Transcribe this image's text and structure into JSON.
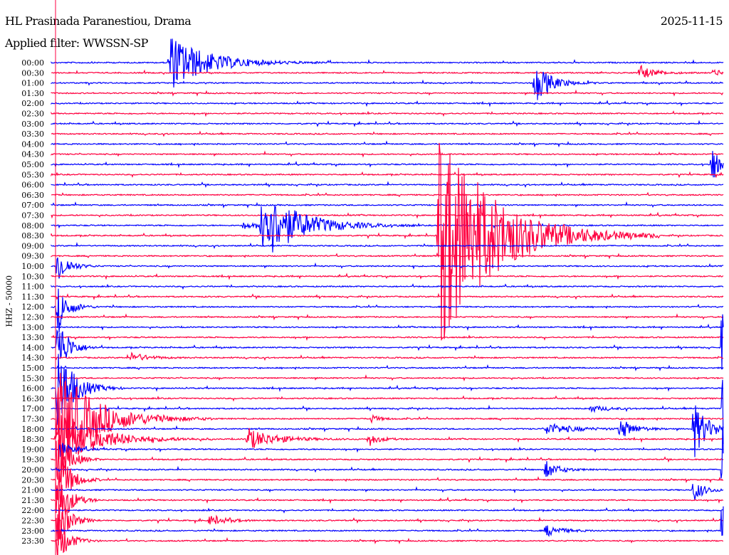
{
  "header": {
    "station": "HL Prasinada Paranestiou, Drama",
    "filter": "Applied filter: WWSSN-SP",
    "date": "2025-11-15",
    "channel": "HHZ - 50000"
  },
  "chart_data": {
    "type": "helicorder",
    "minutes_per_line": 30,
    "row_labels": [
      "00:00",
      "00:30",
      "01:00",
      "01:30",
      "02:00",
      "02:30",
      "03:00",
      "03:30",
      "04:00",
      "04:30",
      "05:00",
      "05:30",
      "06:00",
      "06:30",
      "07:00",
      "07:30",
      "08:00",
      "08:30",
      "09:00",
      "09:30",
      "10:00",
      "10:30",
      "11:00",
      "11:30",
      "12:00",
      "12:30",
      "13:00",
      "13:30",
      "14:00",
      "14:30",
      "15:00",
      "15:30",
      "16:00",
      "16:30",
      "17:00",
      "17:30",
      "18:00",
      "18:30",
      "19:00",
      "19:30",
      "20:00",
      "20:30",
      "21:00",
      "21:30",
      "22:00",
      "22:30",
      "23:00",
      "23:30"
    ],
    "colors": [
      "#0000ff",
      "#ff0040"
    ],
    "marker_color": "#ff0040",
    "events": [
      {
        "row": 0,
        "minute": 5.2,
        "amp": 42,
        "duration": 3.5
      },
      {
        "row": 1,
        "minute": 26.2,
        "amp": 10,
        "duration": 1.5
      },
      {
        "row": 1,
        "minute": 29.5,
        "amp": 10,
        "duration": 0.5
      },
      {
        "row": 2,
        "minute": 21.5,
        "amp": 32,
        "duration": 1.5
      },
      {
        "row": 10,
        "minute": 29.4,
        "amp": 45,
        "duration": 0.6
      },
      {
        "row": 16,
        "minute": 9.3,
        "amp": 55,
        "duration": 3.5
      },
      {
        "row": 16,
        "minute": 8.5,
        "amp": 6,
        "duration": 1.0
      },
      {
        "row": 17,
        "minute": 17.2,
        "amp": 170,
        "duration": 5.0
      },
      {
        "row": 29,
        "minute": 3.5,
        "amp": 8,
        "duration": 1.5
      },
      {
        "row": 34,
        "minute": 24.0,
        "amp": 5,
        "duration": 1.5
      },
      {
        "row": 35,
        "minute": 14.2,
        "amp": 7,
        "duration": 0.8
      },
      {
        "row": 36,
        "minute": 22.0,
        "amp": 9,
        "duration": 2.5
      },
      {
        "row": 36,
        "minute": 25.3,
        "amp": 18,
        "duration": 1.2
      },
      {
        "row": 36,
        "minute": 28.6,
        "amp": 45,
        "duration": 1.3
      },
      {
        "row": 37,
        "minute": 8.7,
        "amp": 16,
        "duration": 2.5
      },
      {
        "row": 37,
        "minute": 14.1,
        "amp": 10,
        "duration": 1.0
      },
      {
        "row": 38,
        "minute": 0.3,
        "amp": 12,
        "duration": 1.3
      },
      {
        "row": 40,
        "minute": 22.0,
        "amp": 14,
        "duration": 1.2
      },
      {
        "row": 42,
        "minute": 28.6,
        "amp": 18,
        "duration": 1.0
      },
      {
        "row": 45,
        "minute": 7.0,
        "amp": 8,
        "duration": 1.5
      },
      {
        "row": 46,
        "minute": 22.0,
        "amp": 9,
        "duration": 1.5
      },
      {
        "row": 20,
        "minute": 0.2,
        "amp": 30,
        "duration": 1.0
      },
      {
        "row": 24,
        "minute": 0.2,
        "amp": 40,
        "duration": 1.0
      },
      {
        "row": 28,
        "minute": 0.2,
        "amp": 55,
        "duration": 1.0
      },
      {
        "row": 32,
        "minute": 0.2,
        "amp": 70,
        "duration": 1.5
      },
      {
        "row": 35,
        "minute": 0.2,
        "amp": 80,
        "duration": 3.5
      },
      {
        "row": 37,
        "minute": 0.2,
        "amp": 45,
        "duration": 3.5
      },
      {
        "row": 39,
        "minute": 0.2,
        "amp": 60,
        "duration": 1.0
      },
      {
        "row": 41,
        "minute": 0.2,
        "amp": 70,
        "duration": 1.0
      },
      {
        "row": 43,
        "minute": 0.2,
        "amp": 60,
        "duration": 1.0
      },
      {
        "row": 45,
        "minute": 0.2,
        "amp": 50,
        "duration": 1.0
      },
      {
        "row": 47,
        "minute": 0.2,
        "amp": 40,
        "duration": 1.0
      },
      {
        "row": 28,
        "minute": 29.9,
        "amp": 120,
        "duration": 0.3
      },
      {
        "row": 34,
        "minute": 29.9,
        "amp": 150,
        "duration": 0.3
      },
      {
        "row": 40,
        "minute": 29.9,
        "amp": 160,
        "duration": 0.3
      },
      {
        "row": 46,
        "minute": 29.9,
        "amp": 120,
        "duration": 0.3
      }
    ]
  }
}
